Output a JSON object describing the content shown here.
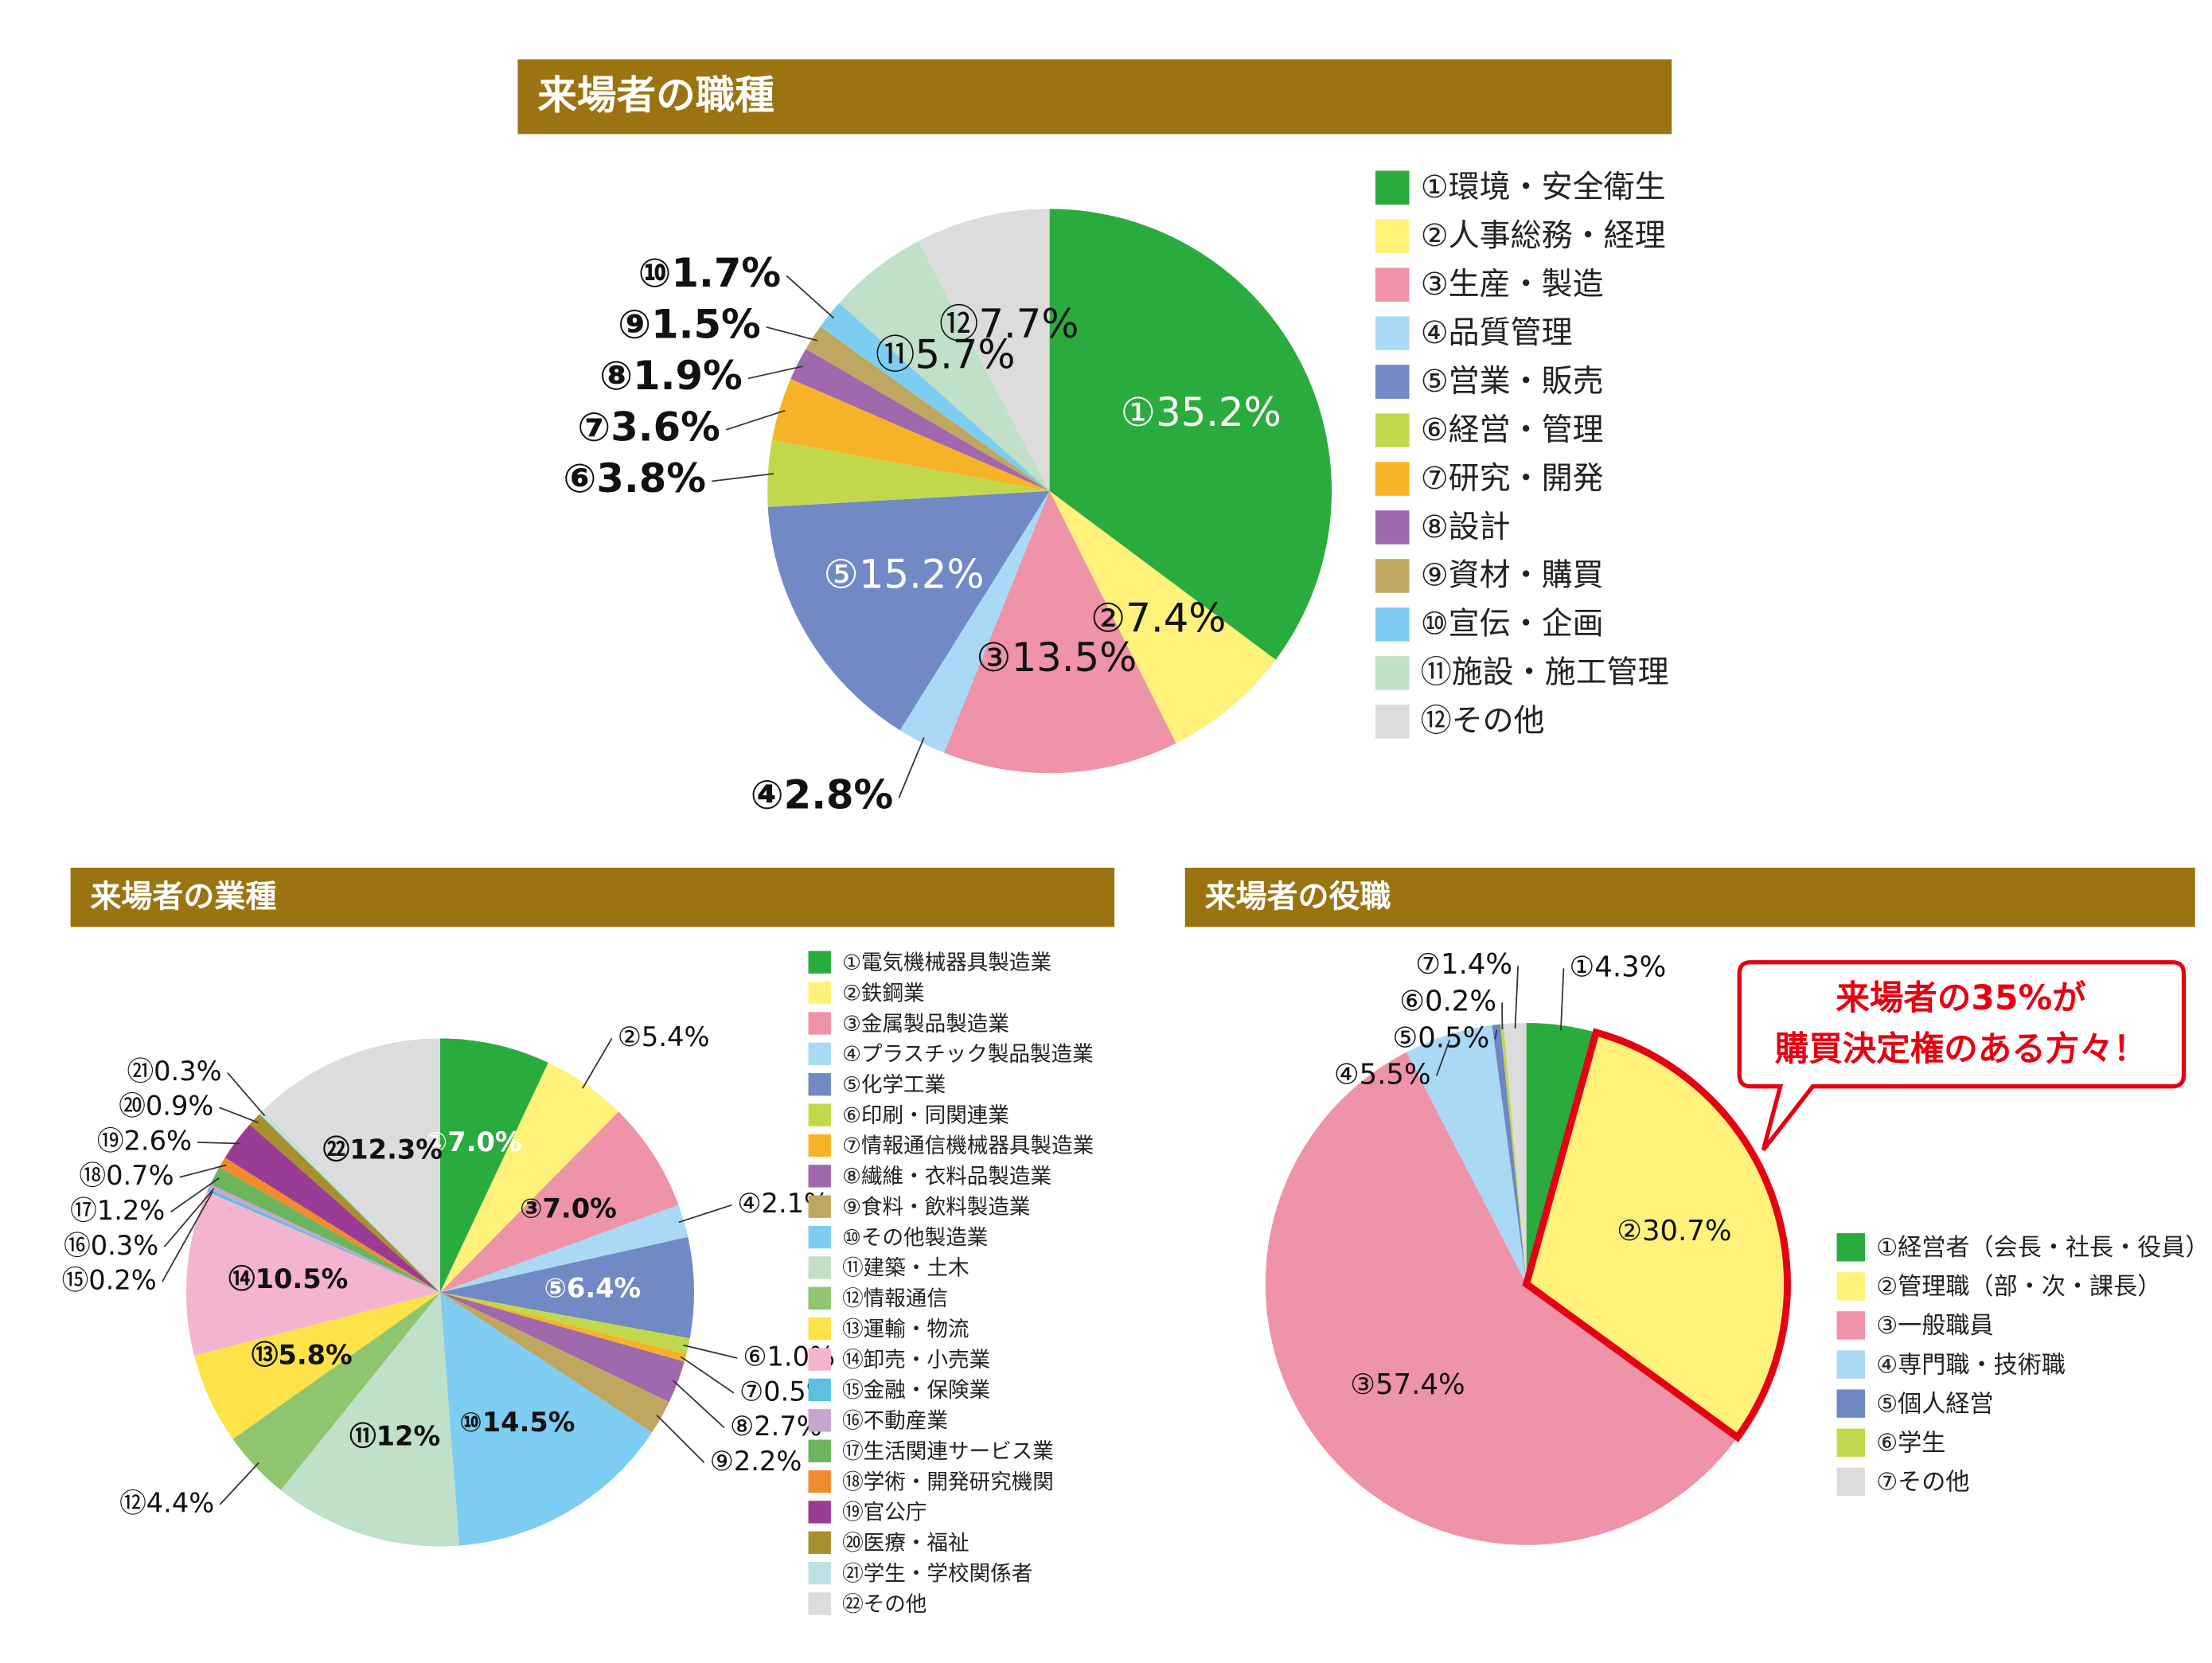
{
  "chart_data": [
    {
      "type": "pie",
      "title": "来場者の職種",
      "categories": [
        "①環境・安全衛生",
        "②人事総務・経理",
        "③生産・製造",
        "④品質管理",
        "⑤営業・販売",
        "⑥経営・管理",
        "⑦研究・開発",
        "⑧設計",
        "⑨資材・購買",
        "⑩宣伝・企画",
        "⑪施設・施工管理",
        "⑫その他"
      ],
      "values": [
        35.2,
        7.4,
        13.5,
        2.8,
        15.2,
        3.8,
        3.6,
        1.9,
        1.5,
        1.7,
        5.7,
        7.7
      ],
      "value_labels": [
        "①35.2%",
        "②7.4%",
        "③13.5%",
        "④2.8%",
        "⑤15.2%",
        "⑥3.8%",
        "⑦3.6%",
        "⑧1.9%",
        "⑨1.5%",
        "⑩1.7%",
        "⑪5.7%",
        "⑫7.7%"
      ],
      "colors": [
        "#2aab3e",
        "#fff27a",
        "#ef93a8",
        "#a9d9f5",
        "#7189c4",
        "#c2d84c",
        "#f6b328",
        "#a169ad",
        "#bfa760",
        "#7dcdf2",
        "#c0e0c8",
        "#dcdcdc"
      ]
    },
    {
      "type": "pie",
      "title": "来場者の業種",
      "categories": [
        "①電気機械器具製造業",
        "②鉄鋼業",
        "③金属製品製造業",
        "④プラスチック製品製造業",
        "⑤化学工業",
        "⑥印刷・同関連業",
        "⑦情報通信機械器具製造業",
        "⑧繊維・衣料品製造業",
        "⑨食料・飲料製造業",
        "⑩その他製造業",
        "⑪建築・土木",
        "⑫情報通信",
        "⑬運輸・物流",
        "⑭卸売・小売業",
        "⑮金融・保険業",
        "⑯不動産業",
        "⑰生活関連サービス業",
        "⑱学術・開発研究機関",
        "⑲官公庁",
        "⑳医療・福祉",
        "㉑学生・学校関係者",
        "㉒その他"
      ],
      "values": [
        7.0,
        5.4,
        7.0,
        2.1,
        6.4,
        1.0,
        0.5,
        2.7,
        2.2,
        14.5,
        12,
        4.4,
        5.8,
        10.5,
        0.2,
        0.3,
        1.2,
        0.7,
        2.6,
        0.9,
        0.3,
        12.3
      ],
      "value_labels": [
        "①7.0%",
        "②5.4%",
        "③7.0%",
        "④2.1%",
        "⑤6.4%",
        "⑥1.0%",
        "⑦0.5%",
        "⑧2.7%",
        "⑨2.2%",
        "⑩14.5%",
        "⑪12%",
        "⑫4.4%",
        "⑬5.8%",
        "⑭10.5%",
        "⑮0.2%",
        "⑯0.3%",
        "⑰1.2%",
        "⑱0.7%",
        "⑲2.6%",
        "⑳0.9%",
        "㉑0.3%",
        "㉒12.3%"
      ],
      "colors": [
        "#2aab3e",
        "#fff27a",
        "#ef93a8",
        "#a9d9f5",
        "#7189c4",
        "#c2d84c",
        "#f6b328",
        "#a169ad",
        "#bfa760",
        "#7dcdf2",
        "#c0e0c8",
        "#8dc66f",
        "#fde24a",
        "#f4b4cf",
        "#5abfe0",
        "#c5a6d0",
        "#6bb65c",
        "#f08c2e",
        "#9a3c96",
        "#a8902e",
        "#bde2e3",
        "#dcdcdc"
      ]
    },
    {
      "type": "pie",
      "title": "来場者の役職",
      "categories": [
        "①経営者（会長・社長・役員）",
        "②管理職（部・次・課長）",
        "③一般職員",
        "④専門職・技術職",
        "⑤個人経営",
        "⑥学生",
        "⑦その他"
      ],
      "values": [
        4.3,
        30.7,
        57.4,
        5.5,
        0.5,
        0.2,
        1.4
      ],
      "value_labels": [
        "①4.3%",
        "②30.7%",
        "③57.4%",
        "④5.5%",
        "⑤0.5%",
        "⑥0.2%",
        "⑦1.4%"
      ],
      "colors": [
        "#2aab3e",
        "#fff27a",
        "#ef93a8",
        "#a9d9f5",
        "#6f86c4",
        "#c2d84c",
        "#dcdcdc"
      ],
      "highlight": 1,
      "highlight_color": "#e60012",
      "annotation": [
        "来場者の35%が",
        "購買決定権のある方々！"
      ]
    }
  ]
}
